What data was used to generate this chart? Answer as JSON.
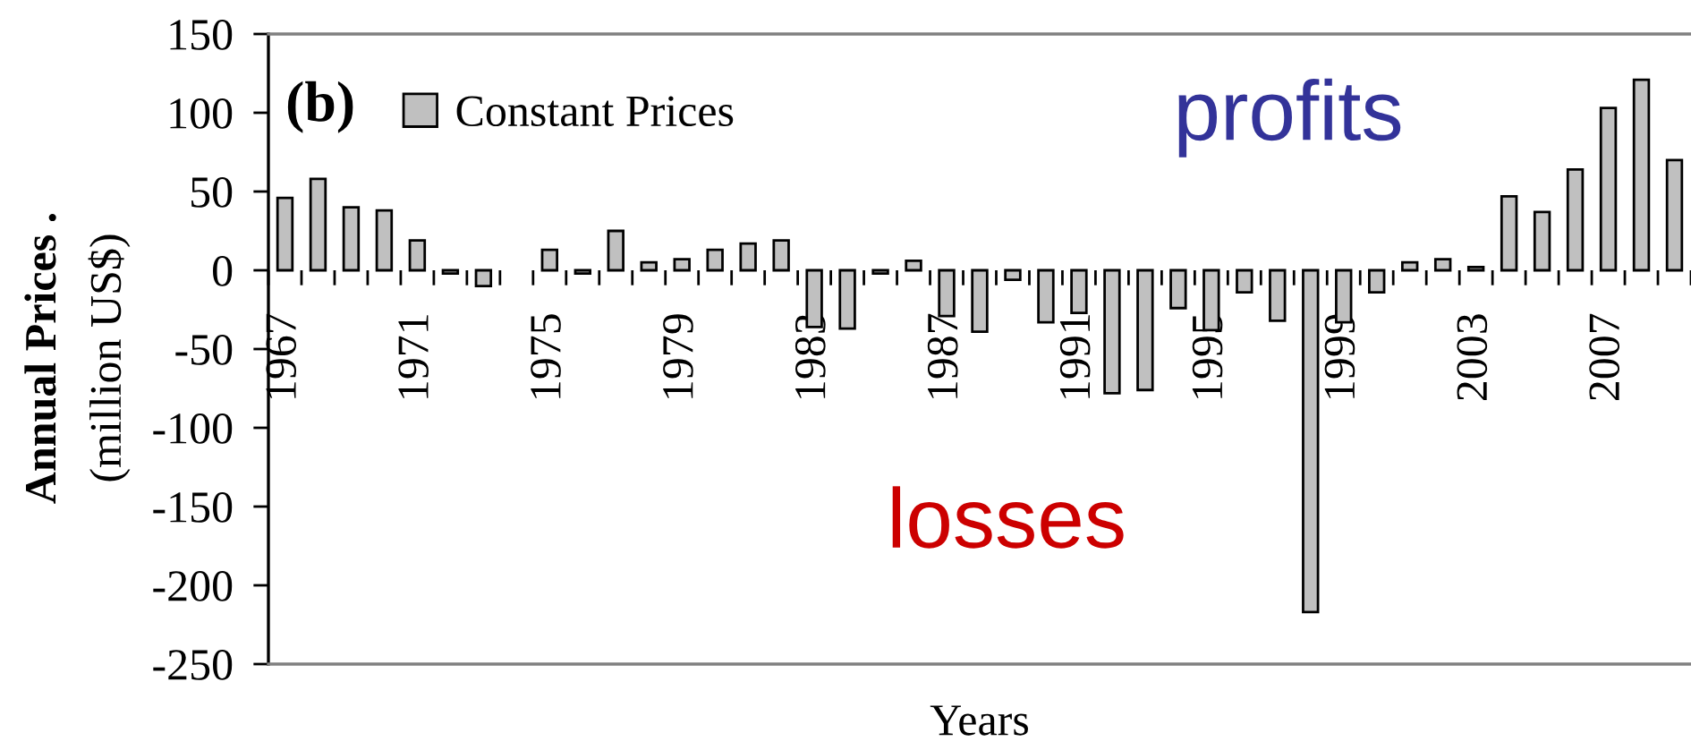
{
  "chart_data": {
    "type": "bar",
    "categories": [
      "1967",
      null,
      null,
      null,
      "1971",
      null,
      null,
      null,
      "1975",
      null,
      null,
      null,
      "1979",
      null,
      null,
      null,
      "1983",
      null,
      null,
      null,
      "1987",
      null,
      null,
      null,
      "1991",
      null,
      null,
      null,
      "1995",
      null,
      null,
      null,
      "1999",
      null,
      null,
      null,
      "2003",
      null,
      null,
      null,
      "2007",
      null,
      null
    ],
    "series": [
      {
        "name": "Constant Prices",
        "color": "#c0c0c0",
        "values": [
          46,
          58,
          40,
          38,
          19,
          -2,
          -10,
          null,
          13,
          -2,
          25,
          5,
          7,
          13,
          17,
          19,
          -36,
          -37,
          -2,
          6,
          -29,
          -39,
          -6,
          -33,
          -27,
          -78,
          -76,
          -24,
          -38,
          -14,
          -32,
          -217,
          -33,
          -14,
          5,
          7,
          2,
          47,
          37,
          64,
          103,
          121,
          70
        ]
      }
    ],
    "xlabel": "Years",
    "ylabel": "Annual Prices .\n(million US$)",
    "ylim": [
      -250,
      150
    ],
    "yticks": [
      -250,
      -200,
      -150,
      -100,
      -50,
      0,
      50,
      100,
      150
    ],
    "legend": "top left",
    "annotations": [
      "(b)",
      "profits",
      "losses"
    ]
  }
}
